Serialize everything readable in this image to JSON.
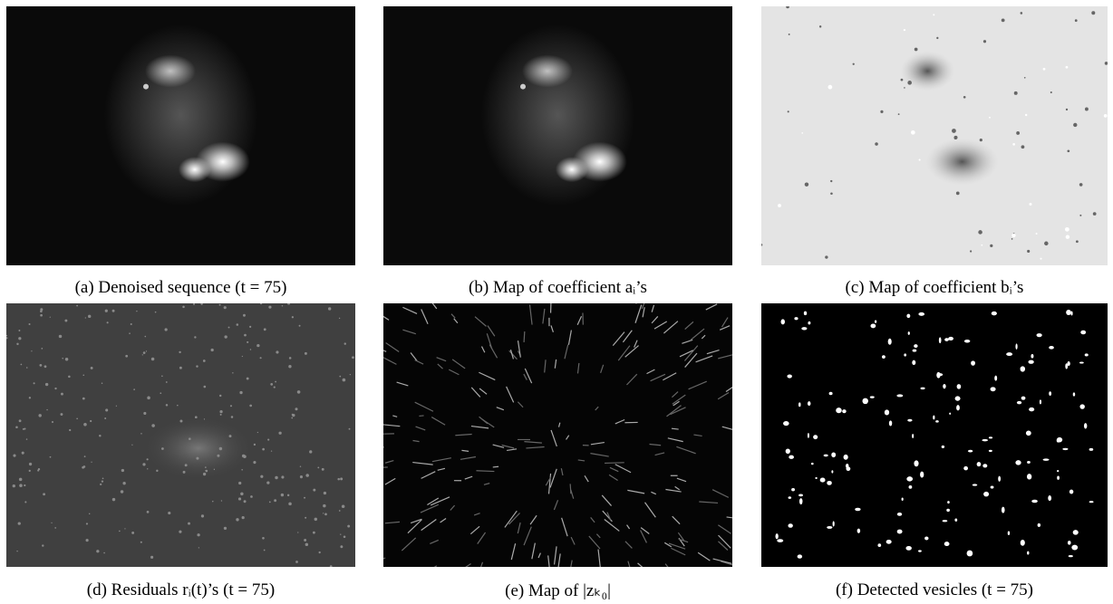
{
  "figure": {
    "panels": [
      {
        "caption": "(a) Denoised sequence (t = 75)"
      },
      {
        "caption": "(b) Map of coefficient aᵢ’s"
      },
      {
        "caption": "(c) Map of coefficient bᵢ’s"
      },
      {
        "caption": "(d) Residuals rᵢ(t)’s (t = 75)"
      },
      {
        "caption": "(e) Map of |zₖ₀|"
      },
      {
        "caption": "(f) Detected vesicles (t = 75)"
      }
    ]
  }
}
